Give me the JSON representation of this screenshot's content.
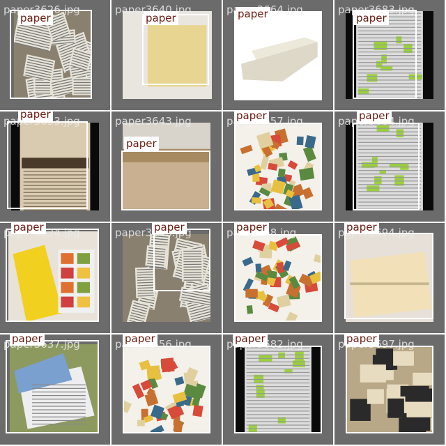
{
  "grid": {
    "tiles": [
      {
        "filename": "paper3626.jpg",
        "label": "paper",
        "scene": "newsprint"
      },
      {
        "filename": "paper3640.jpg",
        "label": "paper",
        "scene": "yellow"
      },
      {
        "filename": "paper3664.jpg",
        "label": "paper",
        "scene": "fold"
      },
      {
        "filename": "paper3683.jpg",
        "label": "paper",
        "scene": "green-news"
      },
      {
        "filename": "paper3633.jpg",
        "label": "paper",
        "scene": "war"
      },
      {
        "filename": "paper3643.jpg",
        "label": "paper",
        "scene": "cardboard"
      },
      {
        "filename": "paper3657.jpg",
        "label": "paper",
        "scene": "colorful"
      },
      {
        "filename": "paper3684.jpg",
        "label": "paper",
        "scene": "green-news"
      },
      {
        "filename": "paper3634.jpg",
        "label": "paper",
        "scene": "ads"
      },
      {
        "filename": "paper3646.jpg",
        "label": "paper",
        "scene": "scatter"
      },
      {
        "filename": "paper368.jpg",
        "label": "paper",
        "scene": "colorful"
      },
      {
        "filename": "paper3694.jpg",
        "label": "paper",
        "scene": "cream"
      },
      {
        "filename": "paper3637.jpg",
        "label": "paper",
        "scene": "pile"
      },
      {
        "filename": "paper3656.jpg",
        "label": "paper",
        "scene": "colorful"
      },
      {
        "filename": "paper3682.jpg",
        "label": "paper",
        "scene": "green-news"
      },
      {
        "filename": "paper3697.jpg",
        "label": "paper",
        "scene": "collage"
      }
    ]
  },
  "colors": {
    "tile_bg": "#6b6b6b",
    "box": "#ffffff",
    "tag_text": "#6b1a10"
  }
}
